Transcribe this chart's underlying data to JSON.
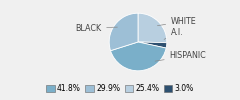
{
  "labels": [
    "WHITE",
    "A.I.",
    "HISPANIC",
    "BLACK"
  ],
  "values": [
    25.4,
    3.0,
    41.8,
    29.9
  ],
  "colors": [
    "#b8cfe0",
    "#2d5070",
    "#7aafc9",
    "#9dbfd6"
  ],
  "legend_labels": [
    "41.8%",
    "29.9%",
    "25.4%",
    "3.0%"
  ],
  "legend_colors": [
    "#7aafc9",
    "#9dbfd6",
    "#b8cfe0",
    "#2d5070"
  ],
  "startangle": 90,
  "figsize": [
    2.4,
    1.0
  ],
  "dpi": 100,
  "bg_color": "#f0f0f0"
}
